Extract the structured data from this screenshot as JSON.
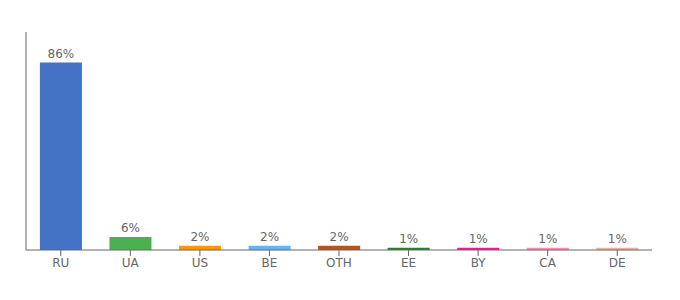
{
  "chart_data": {
    "type": "bar",
    "categories": [
      "RU",
      "UA",
      "US",
      "BE",
      "OTH",
      "EE",
      "BY",
      "CA",
      "DE"
    ],
    "values": [
      86,
      6,
      2,
      2,
      2,
      1,
      1,
      1,
      1
    ],
    "value_labels": [
      "86%",
      "6%",
      "2%",
      "2%",
      "2%",
      "1%",
      "1%",
      "1%",
      "1%"
    ],
    "colors": [
      "#4472c4",
      "#4caf50",
      "#ff9800",
      "#64b5f6",
      "#b5541c",
      "#2e7d32",
      "#e91e8c",
      "#f48fb1",
      "#e8b4a0"
    ],
    "ylim": [
      0,
      100
    ],
    "data_labels": true,
    "tick_labels": "x",
    "grid": false
  }
}
